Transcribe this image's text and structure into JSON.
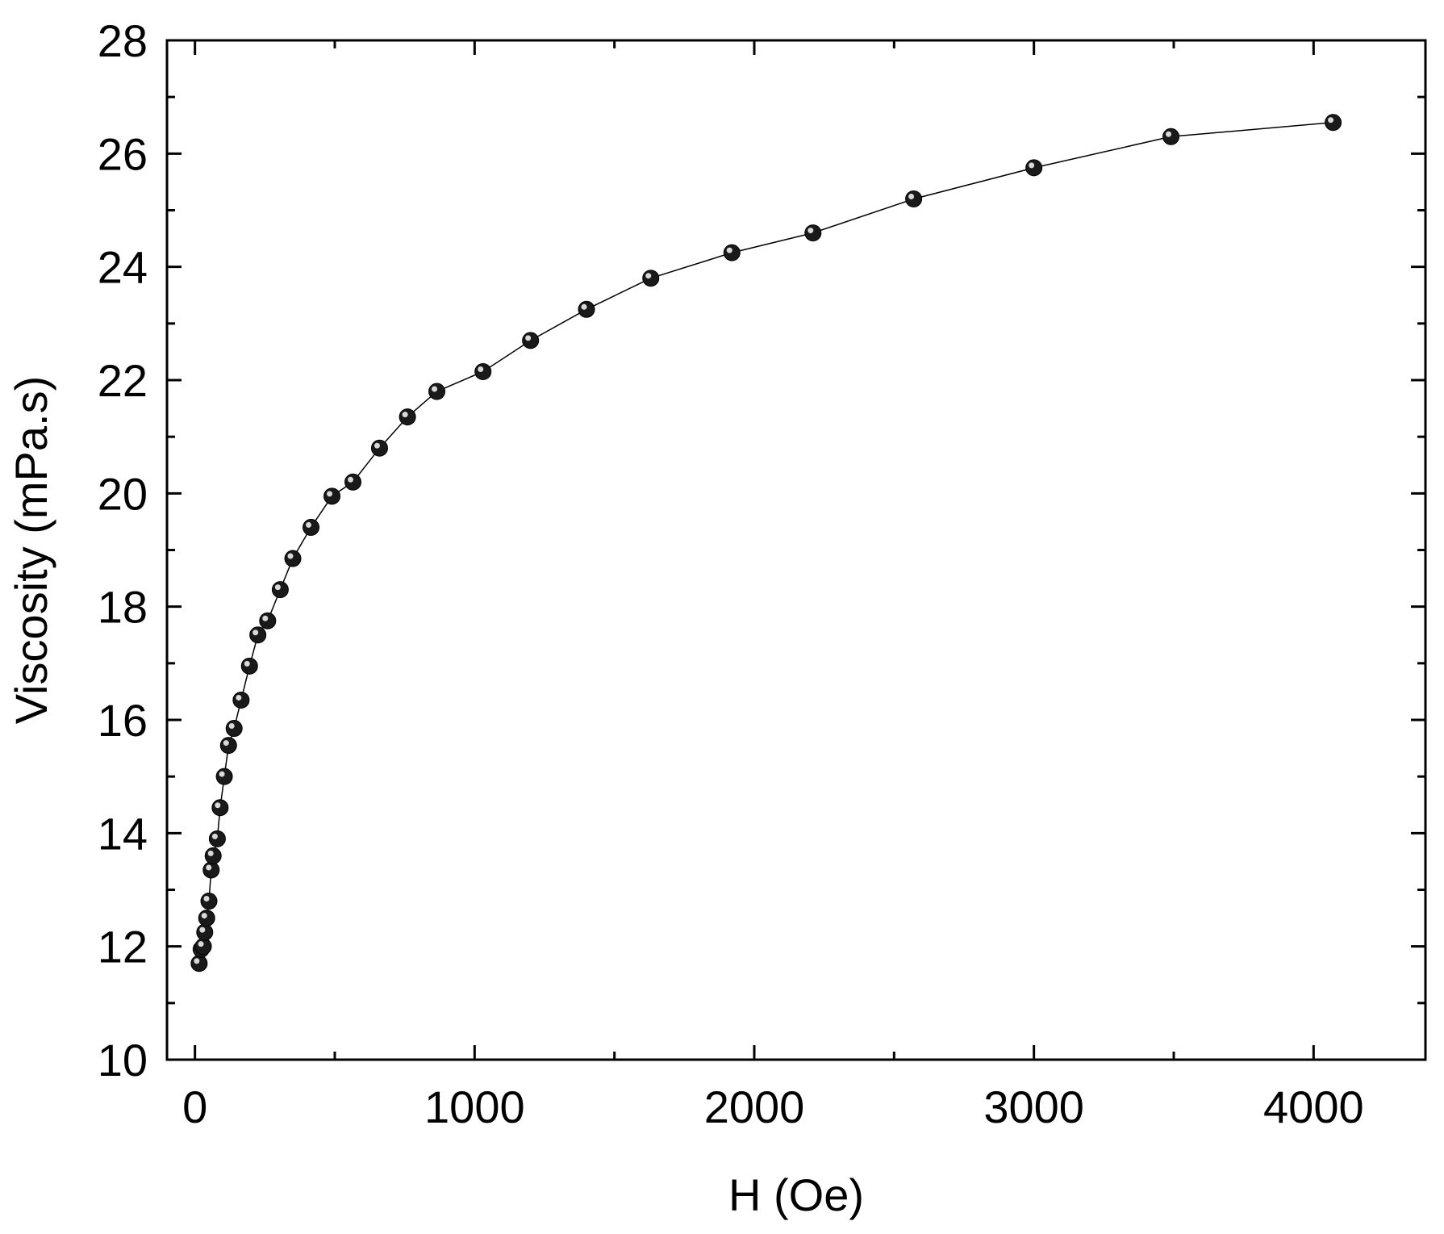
{
  "chart_data": {
    "type": "scatter",
    "xlabel": "H (Oe)",
    "ylabel": "Viscosity (mPa.s)",
    "xlim": [
      -100,
      4400
    ],
    "ylim": [
      10,
      28
    ],
    "x_ticks": [
      0,
      1000,
      2000,
      3000,
      4000
    ],
    "y_ticks": [
      10,
      12,
      14,
      16,
      18,
      20,
      22,
      24,
      26,
      28
    ],
    "x_tick_labels": [
      "0",
      "1000",
      "2000",
      "3000",
      "4000"
    ],
    "y_tick_labels": [
      "10",
      "12",
      "14",
      "16",
      "18",
      "20",
      "22",
      "24",
      "26",
      "28"
    ],
    "grid": false,
    "connect_line": true,
    "marker_color": "#1a1a1a",
    "series": [
      {
        "x": [
          15,
          22,
          30,
          35,
          42,
          50,
          58,
          65,
          80,
          90,
          105,
          120,
          140,
          165,
          195,
          225,
          260,
          305,
          350,
          415,
          490,
          565,
          660,
          760,
          865,
          1030,
          1200,
          1400,
          1630,
          1920,
          2210,
          2570,
          3000,
          3490,
          4070
        ],
        "y": [
          11.7,
          11.95,
          12.0,
          12.25,
          12.5,
          12.8,
          13.35,
          13.6,
          13.9,
          14.45,
          15.0,
          15.55,
          15.85,
          16.35,
          16.95,
          17.5,
          17.75,
          18.3,
          18.85,
          19.4,
          19.95,
          20.2,
          20.8,
          21.35,
          21.8,
          22.15,
          22.7,
          23.25,
          23.8,
          24.25,
          24.6,
          25.2,
          25.75,
          26.3,
          26.55
        ]
      }
    ]
  }
}
